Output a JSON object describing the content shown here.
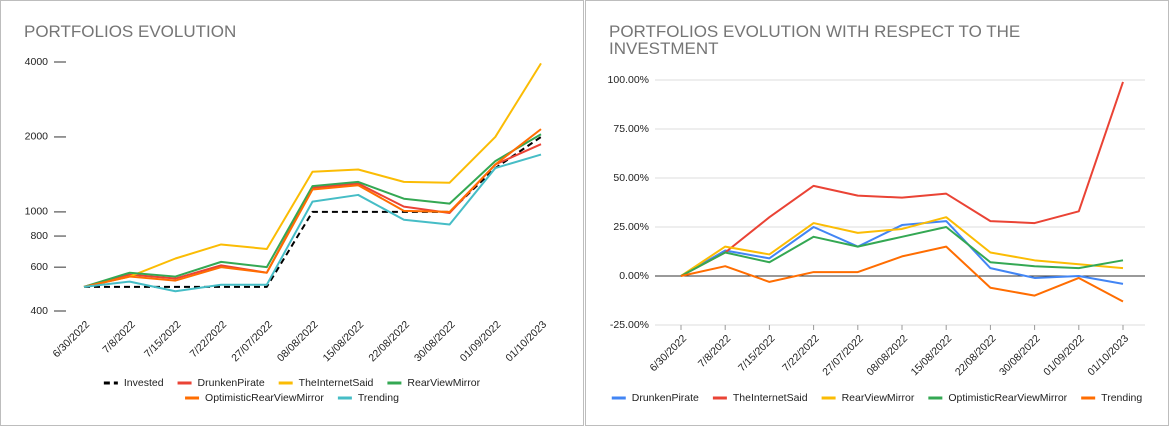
{
  "chart_data": [
    {
      "type": "line",
      "title": "PORTFOLIOS EVOLUTION",
      "log_scale": true,
      "grid": false,
      "categories": [
        "6/30/2022",
        "7/8/2022",
        "7/15/2022",
        "7/22/2022",
        "27/07/2022",
        "08/08/2022",
        "15/08/2022",
        "22/08/2022",
        "30/08/2022",
        "01/09/2022",
        "01/10/2023"
      ],
      "ylim": [
        400,
        4000
      ],
      "yticks": [
        400,
        600,
        800,
        1000,
        2000,
        4000
      ],
      "series": [
        {
          "name": "Invested",
          "color": "#000000",
          "dashed": true,
          "values": [
            500,
            500,
            500,
            500,
            500,
            1000,
            1000,
            1000,
            1000,
            1500,
            2000
          ]
        },
        {
          "name": "DrunkenPirate",
          "color": "#ea4335",
          "values": [
            500,
            560,
            540,
            610,
            570,
            1250,
            1300,
            1050,
            990,
            1550,
            1870
          ]
        },
        {
          "name": "TheInternetSaid",
          "color": "#fbbc04",
          "values": [
            500,
            550,
            650,
            740,
            710,
            1450,
            1480,
            1320,
            1310,
            2000,
            3950
          ]
        },
        {
          "name": "RearViewMirror",
          "color": "#34a853",
          "values": [
            500,
            570,
            550,
            630,
            600,
            1270,
            1320,
            1130,
            1080,
            1600,
            2050
          ]
        },
        {
          "name": "OptimisticRearViewMirror",
          "color": "#ff6d01",
          "values": [
            500,
            550,
            530,
            600,
            570,
            1230,
            1280,
            1010,
            1000,
            1550,
            2150
          ]
        },
        {
          "name": "Trending",
          "color": "#46bdc6",
          "values": [
            500,
            525,
            480,
            510,
            510,
            1100,
            1170,
            930,
            890,
            1500,
            1700
          ]
        }
      ]
    },
    {
      "type": "line",
      "title": "PORTFOLIOS EVOLUTION WITH RESPECT TO THE INVESTMENT",
      "log_scale": false,
      "grid": true,
      "categories": [
        "6/30/2022",
        "7/8/2022",
        "7/15/2022",
        "7/22/2022",
        "27/07/2022",
        "08/08/2022",
        "15/08/2022",
        "22/08/2022",
        "30/08/2022",
        "01/09/2022",
        "01/10/2023"
      ],
      "ylim": [
        -25,
        100
      ],
      "yticks": [
        {
          "value": -25,
          "label": "-25.00%"
        },
        {
          "value": 0,
          "label": "0.00%"
        },
        {
          "value": 25,
          "label": "25.00%"
        },
        {
          "value": 50,
          "label": "50.00%"
        },
        {
          "value": 75,
          "label": "75.00%"
        },
        {
          "value": 100,
          "label": "100.00%"
        }
      ],
      "series": [
        {
          "name": "DrunkenPirate",
          "color": "#4285f4",
          "values": [
            0,
            13,
            9,
            25,
            15,
            26,
            28,
            4,
            -1,
            0,
            -4
          ]
        },
        {
          "name": "TheInternetSaid",
          "color": "#ea4335",
          "values": [
            0,
            12,
            30,
            46,
            41,
            40,
            42,
            28,
            27,
            33,
            99
          ]
        },
        {
          "name": "RearViewMirror",
          "color": "#fbbc04",
          "values": [
            0,
            15,
            11,
            27,
            22,
            24,
            30,
            12,
            8,
            6,
            4
          ]
        },
        {
          "name": "OptimisticRearViewMirror",
          "color": "#34a853",
          "values": [
            0,
            12,
            7,
            20,
            15,
            20,
            25,
            7,
            5,
            4,
            8
          ]
        },
        {
          "name": "Trending",
          "color": "#ff6d01",
          "values": [
            0,
            5,
            -3,
            2,
            2,
            10,
            15,
            -6,
            -10,
            -1,
            -13
          ]
        }
      ]
    }
  ]
}
